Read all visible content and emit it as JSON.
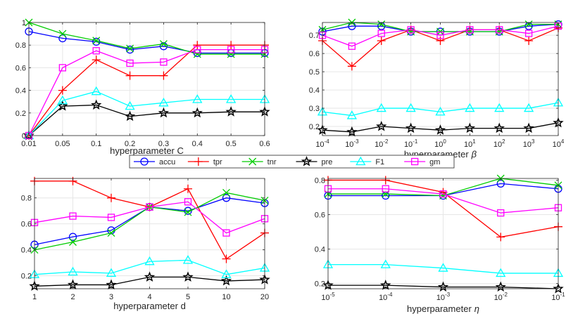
{
  "colors": {
    "accu": "#0000ff",
    "tpr": "#ff0000",
    "tnr": "#00cc00",
    "pre": "#000000",
    "F1": "#00ffff",
    "gm": "#ff00ff"
  },
  "legend": {
    "entries": [
      {
        "key": "accu",
        "label": "accu",
        "marker": "circle"
      },
      {
        "key": "tpr",
        "label": "tpr",
        "marker": "plus"
      },
      {
        "key": "tnr",
        "label": "tnr",
        "marker": "cross"
      },
      {
        "key": "pre",
        "label": "pre",
        "marker": "star"
      },
      {
        "key": "F1",
        "label": "F1",
        "marker": "triangle"
      },
      {
        "key": "gm",
        "label": "gm",
        "marker": "square"
      }
    ]
  },
  "chart_data": [
    {
      "type": "line",
      "xlabel": "hyperparameter C",
      "categories": [
        "0.01",
        "0.05",
        "0.1",
        "0.2",
        "0.3",
        "0.4",
        "0.5",
        "0.6"
      ],
      "ylim": [
        0,
        1
      ],
      "yticks": [
        0,
        0.2,
        0.4,
        0.6,
        0.8,
        1
      ],
      "ytick_labels": [
        "0",
        "0.2",
        "0.4",
        "0.6",
        "0.8",
        "1"
      ],
      "grid": true,
      "series": [
        {
          "name": "accu",
          "values": [
            0.92,
            0.86,
            0.83,
            0.76,
            0.79,
            0.73,
            0.73,
            0.73
          ]
        },
        {
          "name": "tpr",
          "values": [
            0.0,
            0.4,
            0.67,
            0.53,
            0.53,
            0.8,
            0.8,
            0.8
          ]
        },
        {
          "name": "tnr",
          "values": [
            1.0,
            0.9,
            0.84,
            0.77,
            0.81,
            0.72,
            0.72,
            0.72
          ]
        },
        {
          "name": "pre",
          "values": [
            0.0,
            0.26,
            0.27,
            0.17,
            0.2,
            0.2,
            0.21,
            0.21
          ]
        },
        {
          "name": "F1",
          "values": [
            0.0,
            0.31,
            0.39,
            0.26,
            0.29,
            0.32,
            0.32,
            0.32
          ]
        },
        {
          "name": "gm",
          "values": [
            0.0,
            0.6,
            0.75,
            0.64,
            0.65,
            0.76,
            0.76,
            0.76
          ]
        }
      ]
    },
    {
      "type": "line",
      "xlabel": "hyperparameter",
      "xlabel_symbol": "β",
      "categories": [
        "-4",
        "-3",
        "-2",
        "-1",
        "0",
        "1",
        "2",
        "3",
        "4"
      ],
      "category_base": "10",
      "ylim": [
        0.15,
        0.77
      ],
      "yticks": [
        0.2,
        0.3,
        0.4,
        0.5,
        0.6,
        0.7
      ],
      "ytick_labels": [
        "0.2",
        "0.3",
        "0.4",
        "0.5",
        "0.6",
        "0.7"
      ],
      "grid": true,
      "series": [
        {
          "name": "accu",
          "values": [
            0.72,
            0.75,
            0.75,
            0.72,
            0.72,
            0.72,
            0.72,
            0.75,
            0.76
          ]
        },
        {
          "name": "tpr",
          "values": [
            0.67,
            0.53,
            0.67,
            0.73,
            0.67,
            0.73,
            0.73,
            0.67,
            0.74
          ]
        },
        {
          "name": "tnr",
          "values": [
            0.73,
            0.77,
            0.76,
            0.72,
            0.72,
            0.72,
            0.72,
            0.76,
            0.76
          ]
        },
        {
          "name": "pre",
          "values": [
            0.18,
            0.17,
            0.2,
            0.19,
            0.18,
            0.19,
            0.19,
            0.19,
            0.22
          ]
        },
        {
          "name": "F1",
          "values": [
            0.28,
            0.26,
            0.3,
            0.3,
            0.28,
            0.3,
            0.3,
            0.3,
            0.33
          ]
        },
        {
          "name": "gm",
          "values": [
            0.7,
            0.64,
            0.71,
            0.73,
            0.7,
            0.73,
            0.73,
            0.71,
            0.75
          ]
        }
      ]
    },
    {
      "type": "line",
      "xlabel": "hyperparameter d",
      "categories": [
        "1",
        "2",
        "3",
        "4",
        "5",
        "10",
        "20"
      ],
      "ylim": [
        0.1,
        0.95
      ],
      "yticks": [
        0.2,
        0.4,
        0.6,
        0.8
      ],
      "ytick_labels": [
        "0.2",
        "0.4",
        "0.6",
        "0.8"
      ],
      "grid": true,
      "series": [
        {
          "name": "accu",
          "values": [
            0.44,
            0.5,
            0.55,
            0.73,
            0.7,
            0.8,
            0.76
          ]
        },
        {
          "name": "tpr",
          "values": [
            0.93,
            0.93,
            0.8,
            0.73,
            0.87,
            0.33,
            0.53
          ]
        },
        {
          "name": "tnr",
          "values": [
            0.4,
            0.46,
            0.53,
            0.73,
            0.69,
            0.84,
            0.78
          ]
        },
        {
          "name": "pre",
          "values": [
            0.12,
            0.13,
            0.13,
            0.19,
            0.19,
            0.16,
            0.17
          ]
        },
        {
          "name": "F1",
          "values": [
            0.21,
            0.23,
            0.22,
            0.31,
            0.32,
            0.21,
            0.26
          ]
        },
        {
          "name": "gm",
          "values": [
            0.61,
            0.66,
            0.65,
            0.73,
            0.77,
            0.53,
            0.64
          ]
        }
      ]
    },
    {
      "type": "line",
      "xlabel": "hyperparameter",
      "xlabel_symbol": "η",
      "categories": [
        "-5",
        "-4",
        "-3",
        "-2",
        "-1"
      ],
      "category_base": "10",
      "ylim": [
        0.17,
        0.81
      ],
      "yticks": [
        0.2,
        0.4,
        0.6,
        0.8
      ],
      "ytick_labels": [
        "0.2",
        "0.4",
        "0.6",
        "0.8"
      ],
      "grid": true,
      "series": [
        {
          "name": "accu",
          "values": [
            0.71,
            0.71,
            0.71,
            0.78,
            0.75
          ]
        },
        {
          "name": "tpr",
          "values": [
            0.8,
            0.8,
            0.73,
            0.47,
            0.53
          ]
        },
        {
          "name": "tnr",
          "values": [
            0.72,
            0.72,
            0.71,
            0.81,
            0.77
          ]
        },
        {
          "name": "pre",
          "values": [
            0.19,
            0.19,
            0.18,
            0.18,
            0.17
          ]
        },
        {
          "name": "F1",
          "values": [
            0.31,
            0.31,
            0.29,
            0.26,
            0.26
          ]
        },
        {
          "name": "gm",
          "values": [
            0.75,
            0.75,
            0.72,
            0.61,
            0.64
          ]
        }
      ]
    }
  ]
}
